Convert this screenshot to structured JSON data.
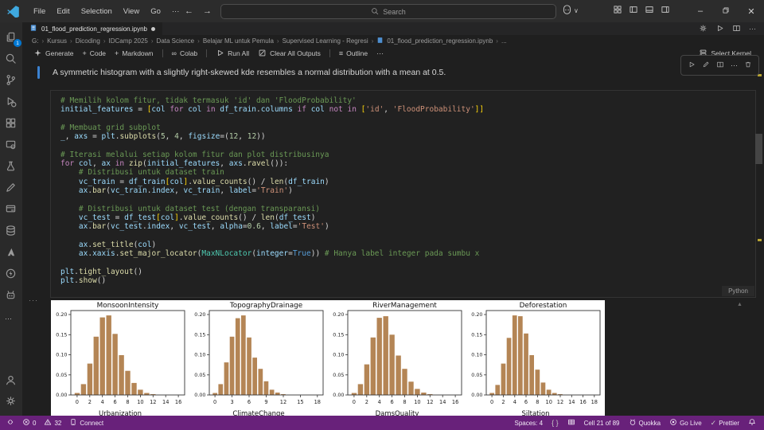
{
  "colors": {
    "status_bar": "#68217a",
    "accent_blue": "#3b82d1",
    "badge_blue": "#0078d4",
    "bar_color": "#b48555"
  },
  "titlebar": {
    "menus": [
      "File",
      "Edit",
      "Selection",
      "View",
      "Go",
      "···"
    ],
    "search_placeholder": "Search"
  },
  "tab": {
    "label": "01_flood_prediction_regression.ipynb",
    "modified": true
  },
  "breadcrumbs": {
    "path": [
      "G:",
      "Kursus",
      "Dicoding",
      "IDCamp 2025",
      "Data Science",
      "Belajar ML untuk Pemula",
      "Supervised Learning - Regresi"
    ],
    "file": "01_flood_prediction_regression.ipynb",
    "trailing": "..."
  },
  "notebook_toolbar": {
    "items": [
      {
        "icon": "sparkle",
        "label": "Generate"
      },
      {
        "icon": "plus",
        "label": "Code"
      },
      {
        "icon": "plus",
        "label": "Markdown"
      },
      {
        "sep": true
      },
      {
        "icon": "infinity",
        "label": "Colab"
      },
      {
        "sep": true
      },
      {
        "icon": "play",
        "label": "Run All"
      },
      {
        "icon": "clear",
        "label": "Clear All Outputs"
      },
      {
        "sep": true
      },
      {
        "icon": "outline",
        "label": "Outline"
      },
      {
        "icon": "ellipsis",
        "label": ""
      }
    ],
    "select_kernel": "Select Kernel"
  },
  "markdown_cell": {
    "text": "A symmetric histogram with a slightly right-skewed kde resembles a normal distribution with a mean at 0.5."
  },
  "cell_toolbar": [
    "play",
    "pencil",
    "split",
    "ellipsis",
    "trash"
  ],
  "code_cell": {
    "language": "Python",
    "lines": [
      [
        [
          "c",
          "# Memilih kolom fitur, tidak termasuk 'id' dan 'FloodProbability'"
        ]
      ],
      [
        [
          "v",
          "initial_features"
        ],
        [
          "p",
          " = "
        ],
        [
          "br",
          "["
        ],
        [
          "v",
          "col"
        ],
        [
          "k",
          " for "
        ],
        [
          "v",
          "col"
        ],
        [
          "k",
          " in "
        ],
        [
          "v",
          "df_train"
        ],
        [
          "p",
          "."
        ],
        [
          "v",
          "columns"
        ],
        [
          "k",
          " if "
        ],
        [
          "v",
          "col"
        ],
        [
          "k",
          " not in "
        ],
        [
          "br",
          "["
        ],
        [
          "s",
          "'id'"
        ],
        [
          "p",
          ", "
        ],
        [
          "s",
          "'FloodProbability'"
        ],
        [
          "br",
          "]]"
        ]
      ],
      [],
      [
        [
          "c",
          "# Membuat grid subplot"
        ]
      ],
      [
        [
          "v",
          "_"
        ],
        [
          "p",
          ", "
        ],
        [
          "v",
          "axs"
        ],
        [
          "p",
          " = "
        ],
        [
          "v",
          "plt"
        ],
        [
          "p",
          "."
        ],
        [
          "f",
          "subplots"
        ],
        [
          "p",
          "("
        ],
        [
          "n",
          "5"
        ],
        [
          "p",
          ", "
        ],
        [
          "n",
          "4"
        ],
        [
          "p",
          ", "
        ],
        [
          "v",
          "figsize"
        ],
        [
          "p",
          "=("
        ],
        [
          "n",
          "12"
        ],
        [
          "p",
          ", "
        ],
        [
          "n",
          "12"
        ],
        [
          "p",
          "))"
        ]
      ],
      [],
      [
        [
          "c",
          "# Iterasi melalui setiap kolom fitur dan plot distribusinya"
        ]
      ],
      [
        [
          "k",
          "for "
        ],
        [
          "v",
          "col"
        ],
        [
          "p",
          ", "
        ],
        [
          "v",
          "ax"
        ],
        [
          "k",
          " in "
        ],
        [
          "f",
          "zip"
        ],
        [
          "p",
          "("
        ],
        [
          "v",
          "initial_features"
        ],
        [
          "p",
          ", "
        ],
        [
          "v",
          "axs"
        ],
        [
          "p",
          "."
        ],
        [
          "f",
          "ravel"
        ],
        [
          "p",
          "()):"
        ]
      ],
      [
        [
          "c",
          "    # Distribusi untuk dataset train"
        ]
      ],
      [
        [
          "p",
          "    "
        ],
        [
          "v",
          "vc_train"
        ],
        [
          "p",
          " = "
        ],
        [
          "v",
          "df_train"
        ],
        [
          "br",
          "["
        ],
        [
          "v",
          "col"
        ],
        [
          "br",
          "]"
        ],
        [
          "p",
          "."
        ],
        [
          "f",
          "value_counts"
        ],
        [
          "p",
          "() / "
        ],
        [
          "f",
          "len"
        ],
        [
          "p",
          "("
        ],
        [
          "v",
          "df_train"
        ],
        [
          "p",
          ")"
        ]
      ],
      [
        [
          "p",
          "    "
        ],
        [
          "v",
          "ax"
        ],
        [
          "p",
          "."
        ],
        [
          "f",
          "bar"
        ],
        [
          "p",
          "("
        ],
        [
          "v",
          "vc_train"
        ],
        [
          "p",
          "."
        ],
        [
          "v",
          "index"
        ],
        [
          "p",
          ", "
        ],
        [
          "v",
          "vc_train"
        ],
        [
          "p",
          ", "
        ],
        [
          "v",
          "label"
        ],
        [
          "p",
          "="
        ],
        [
          "s",
          "'Train'"
        ],
        [
          "p",
          ")"
        ]
      ],
      [],
      [
        [
          "c",
          "    # Distribusi untuk dataset test (dengan transparansi)"
        ]
      ],
      [
        [
          "p",
          "    "
        ],
        [
          "v",
          "vc_test"
        ],
        [
          "p",
          " = "
        ],
        [
          "v",
          "df_test"
        ],
        [
          "br",
          "["
        ],
        [
          "v",
          "col"
        ],
        [
          "br",
          "]"
        ],
        [
          "p",
          "."
        ],
        [
          "f",
          "value_counts"
        ],
        [
          "p",
          "() / "
        ],
        [
          "f",
          "len"
        ],
        [
          "p",
          "("
        ],
        [
          "v",
          "df_test"
        ],
        [
          "p",
          ")"
        ]
      ],
      [
        [
          "p",
          "    "
        ],
        [
          "v",
          "ax"
        ],
        [
          "p",
          "."
        ],
        [
          "f",
          "bar"
        ],
        [
          "p",
          "("
        ],
        [
          "v",
          "vc_test"
        ],
        [
          "p",
          "."
        ],
        [
          "v",
          "index"
        ],
        [
          "p",
          ", "
        ],
        [
          "v",
          "vc_test"
        ],
        [
          "p",
          ", "
        ],
        [
          "v",
          "alpha"
        ],
        [
          "p",
          "="
        ],
        [
          "n",
          "0.6"
        ],
        [
          "p",
          ", "
        ],
        [
          "v",
          "label"
        ],
        [
          "p",
          "="
        ],
        [
          "s",
          "'Test'"
        ],
        [
          "p",
          ")"
        ]
      ],
      [],
      [
        [
          "p",
          "    "
        ],
        [
          "v",
          "ax"
        ],
        [
          "p",
          "."
        ],
        [
          "f",
          "set_title"
        ],
        [
          "p",
          "("
        ],
        [
          "v",
          "col"
        ],
        [
          "p",
          ")"
        ]
      ],
      [
        [
          "p",
          "    "
        ],
        [
          "v",
          "ax"
        ],
        [
          "p",
          "."
        ],
        [
          "v",
          "xaxis"
        ],
        [
          "p",
          "."
        ],
        [
          "f",
          "set_major_locator"
        ],
        [
          "p",
          "("
        ],
        [
          "t",
          "MaxNLocator"
        ],
        [
          "p",
          "("
        ],
        [
          "v",
          "integer"
        ],
        [
          "p",
          "="
        ],
        [
          "b",
          "True"
        ],
        [
          "p",
          ")) "
        ],
        [
          "c",
          "# Hanya label integer pada sumbu x"
        ]
      ],
      [],
      [
        [
          "v",
          "plt"
        ],
        [
          "p",
          "."
        ],
        [
          "f",
          "tight_layout"
        ],
        [
          "p",
          "()"
        ]
      ],
      [
        [
          "v",
          "plt"
        ],
        [
          "p",
          "."
        ],
        [
          "f",
          "show"
        ],
        [
          "p",
          "()"
        ]
      ]
    ]
  },
  "activity_bar": {
    "top": [
      {
        "name": "explorer",
        "icon": "files",
        "badge": "1"
      },
      {
        "name": "search",
        "icon": "search"
      },
      {
        "name": "source-control",
        "icon": "git"
      },
      {
        "name": "run-debug",
        "icon": "debug"
      },
      {
        "name": "extensions",
        "icon": "extensions"
      },
      {
        "name": "remote-explorer",
        "icon": "remote-explorer"
      },
      {
        "name": "testing",
        "icon": "testing"
      },
      {
        "name": "draw",
        "icon": "pen"
      },
      {
        "name": "sqltools",
        "icon": "window-db"
      },
      {
        "name": "database",
        "icon": "database"
      },
      {
        "name": "azure",
        "icon": "azure"
      },
      {
        "name": "thunder-client",
        "icon": "thunder"
      },
      {
        "name": "ai-assistant",
        "icon": "robot"
      },
      {
        "name": "more",
        "icon": "ellipsis"
      }
    ],
    "bottom": [
      {
        "name": "accounts",
        "icon": "account"
      },
      {
        "name": "settings",
        "icon": "gear"
      }
    ]
  },
  "status_bar": {
    "left": [
      {
        "name": "remote",
        "icon": "remote",
        "label": ""
      },
      {
        "name": "errors",
        "icon": "error",
        "label": "0"
      },
      {
        "name": "warnings",
        "icon": "warning",
        "label": "32"
      },
      {
        "name": "connect",
        "icon": "connect",
        "label": "Connect"
      }
    ],
    "right": [
      {
        "name": "spaces",
        "label": "Spaces: 4"
      },
      {
        "name": "braces",
        "icon": "braces",
        "label": ""
      },
      {
        "name": "grid",
        "icon": "grid",
        "label": ""
      },
      {
        "name": "cell-indicator",
        "label": "Cell 21 of 89"
      },
      {
        "name": "quokka",
        "icon": "quokka",
        "label": "Quokka"
      },
      {
        "name": "go-live",
        "icon": "golive",
        "label": "Go Live"
      },
      {
        "name": "prettier",
        "icon": "check",
        "label": "Prettier"
      },
      {
        "name": "bell",
        "icon": "bell",
        "label": ""
      }
    ]
  },
  "chart_data": [
    {
      "type": "bar",
      "title": "MonsoonIntensity",
      "x": [
        0,
        1,
        2,
        3,
        4,
        5,
        6,
        7,
        8,
        9,
        10,
        11,
        12
      ],
      "values": [
        0.005,
        0.027,
        0.078,
        0.145,
        0.193,
        0.198,
        0.152,
        0.099,
        0.06,
        0.03,
        0.013,
        0.005,
        0.002
      ],
      "xticks": [
        0,
        2,
        4,
        6,
        8,
        10,
        12,
        14,
        16
      ],
      "xlim": [
        -1,
        17
      ],
      "yticks": [
        0,
        0.05,
        0.1,
        0.15,
        0.2
      ],
      "ylim": [
        0,
        0.21
      ],
      "bar_color": "#b48555"
    },
    {
      "type": "bar",
      "title": "TopographyDrainage",
      "x": [
        0,
        1,
        2,
        3,
        4,
        5,
        6,
        7,
        8,
        9,
        10,
        11,
        12
      ],
      "values": [
        0.005,
        0.027,
        0.081,
        0.145,
        0.191,
        0.198,
        0.143,
        0.093,
        0.065,
        0.034,
        0.013,
        0.006,
        0.002
      ],
      "xticks": [
        0,
        3,
        6,
        9,
        12,
        15,
        18
      ],
      "xlim": [
        -1,
        19
      ],
      "yticks": [
        0,
        0.05,
        0.1,
        0.15,
        0.2
      ],
      "ylim": [
        0,
        0.21
      ],
      "bar_color": "#b48555"
    },
    {
      "type": "bar",
      "title": "RiverManagement",
      "x": [
        0,
        1,
        2,
        3,
        4,
        5,
        6,
        7,
        8,
        9,
        10,
        11,
        12
      ],
      "values": [
        0.005,
        0.027,
        0.076,
        0.143,
        0.192,
        0.196,
        0.15,
        0.098,
        0.065,
        0.033,
        0.015,
        0.006,
        0.002
      ],
      "xticks": [
        0,
        2,
        4,
        6,
        8,
        10,
        12,
        14,
        16
      ],
      "xlim": [
        -1,
        17
      ],
      "yticks": [
        0,
        0.05,
        0.1,
        0.15,
        0.2
      ],
      "ylim": [
        0,
        0.21
      ],
      "bar_color": "#b48555"
    },
    {
      "type": "bar",
      "title": "Deforestation",
      "x": [
        0,
        1,
        2,
        3,
        4,
        5,
        6,
        7,
        8,
        9,
        10,
        11,
        12
      ],
      "values": [
        0.005,
        0.025,
        0.078,
        0.142,
        0.198,
        0.196,
        0.153,
        0.099,
        0.063,
        0.031,
        0.013,
        0.005,
        0.002
      ],
      "xticks": [
        0,
        2,
        4,
        6,
        8,
        10,
        12,
        14,
        16,
        18
      ],
      "xlim": [
        -1,
        19
      ],
      "yticks": [
        0,
        0.05,
        0.1,
        0.15,
        0.2
      ],
      "ylim": [
        0,
        0.21
      ],
      "bar_color": "#b48555"
    }
  ],
  "output_next_row_titles": [
    "Urbanization",
    "ClimateChange",
    "DamsQuality",
    "Siltation"
  ]
}
